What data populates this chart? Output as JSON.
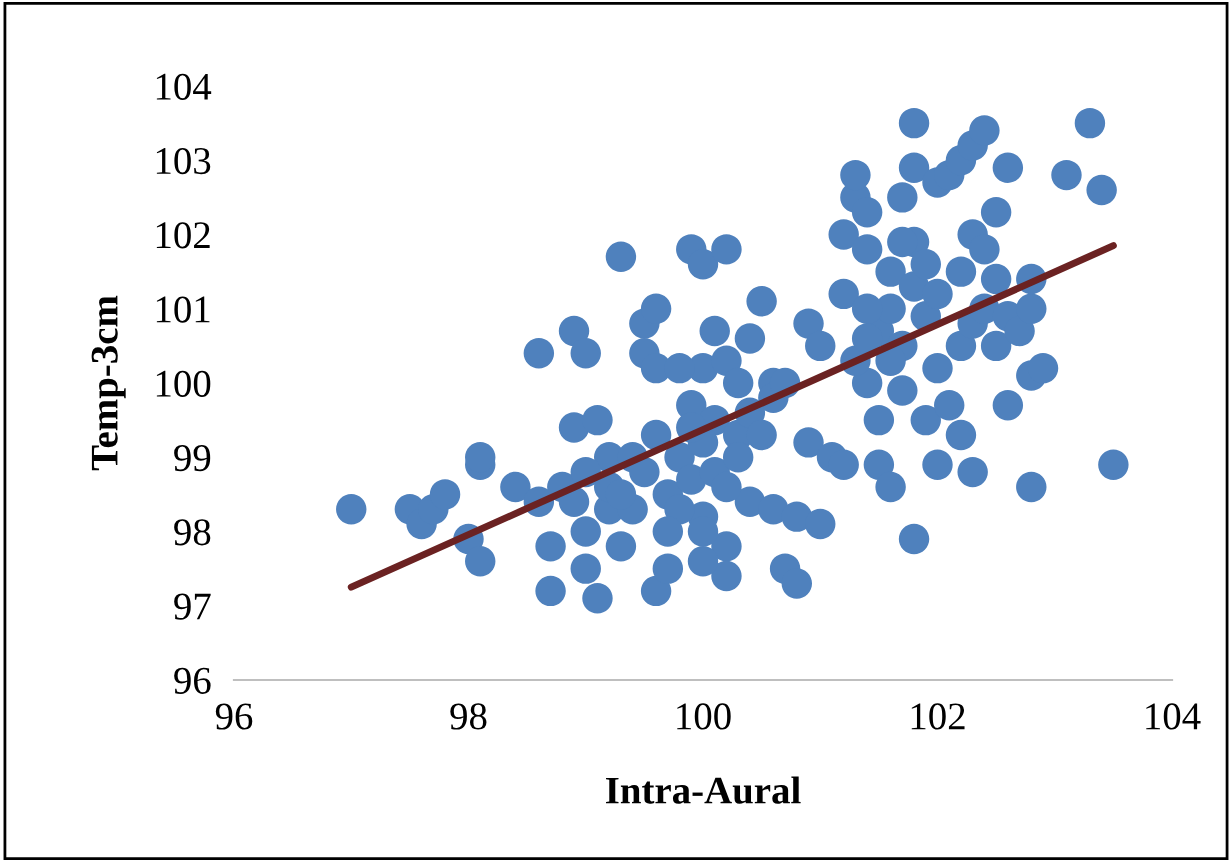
{
  "chart_data": {
    "type": "scatter",
    "xlabel": "Intra-Aural",
    "ylabel": "Temp-3cm",
    "xlim": [
      96,
      104
    ],
    "ylim": [
      96,
      104
    ],
    "xticks": [
      96,
      98,
      100,
      102,
      104
    ],
    "yticks": [
      96,
      97,
      98,
      99,
      100,
      101,
      102,
      103,
      104
    ],
    "marker": "circle",
    "series": [
      {
        "color": "#4f81bd",
        "x": [
          97.0,
          97.5,
          97.6,
          97.7,
          97.8,
          98.0,
          98.1,
          98.1,
          98.1,
          98.4,
          98.6,
          98.6,
          98.7,
          98.7,
          98.8,
          98.9,
          98.9,
          99.0,
          99.0,
          99.0,
          99.1,
          99.1,
          99.2,
          99.2,
          99.3,
          99.3,
          99.4,
          99.5,
          99.5,
          99.6,
          99.6,
          99.6,
          99.7,
          99.7,
          99.8,
          99.9,
          99.9,
          100.0,
          100.0,
          100.0,
          100.1,
          100.1,
          100.2,
          100.2,
          100.2,
          100.2,
          100.3,
          100.4,
          100.4,
          100.5,
          100.6,
          100.6,
          100.7,
          100.8,
          100.8,
          100.9,
          100.9,
          101.0,
          101.0,
          101.1,
          101.2,
          101.2,
          101.3,
          101.3,
          101.4,
          101.4,
          101.4,
          101.5,
          101.5,
          101.5,
          101.6,
          101.6,
          101.6,
          101.7,
          101.7,
          101.7,
          101.8,
          101.8,
          101.8,
          101.8,
          101.8,
          101.9,
          101.9,
          102.0,
          102.0,
          102.0,
          102.1,
          102.1,
          102.2,
          102.2,
          102.2,
          102.2,
          102.3,
          102.3,
          102.3,
          102.3,
          102.4,
          102.4,
          102.5,
          102.5,
          102.5,
          102.6,
          102.6,
          102.6,
          102.7,
          102.8,
          102.8,
          102.8,
          102.8,
          102.9,
          103.1,
          103.3,
          103.4,
          103.5,
          99.0,
          99.2,
          99.4,
          99.5,
          99.6,
          99.8,
          99.9,
          100.0,
          100.1,
          100.2,
          100.3,
          100.4,
          100.5,
          100.6,
          100.0,
          99.7,
          99.3,
          98.9,
          99.8,
          100.3,
          99.9,
          100.7,
          101.3,
          101.2,
          101.6,
          101.9,
          101.4,
          102.0,
          102.4,
          101.7,
          101.4,
          100.0
        ],
        "values": [
          98.3,
          98.3,
          98.1,
          98.3,
          98.5,
          97.9,
          97.6,
          98.9,
          99.0,
          98.6,
          98.4,
          100.4,
          97.8,
          97.2,
          98.6,
          99.4,
          100.7,
          100.4,
          98.0,
          97.5,
          97.1,
          99.5,
          98.3,
          99.0,
          101.7,
          97.8,
          99.0,
          100.8,
          100.4,
          101.0,
          100.2,
          97.2,
          97.5,
          98.5,
          99.0,
          101.8,
          99.7,
          101.6,
          98.2,
          100.2,
          99.5,
          100.7,
          101.8,
          100.3,
          97.8,
          97.4,
          99.3,
          100.6,
          98.4,
          101.1,
          100.0,
          98.3,
          97.5,
          97.3,
          98.2,
          100.8,
          99.2,
          100.5,
          98.1,
          99.0,
          102.0,
          98.9,
          102.5,
          102.8,
          102.3,
          101.8,
          100.0,
          100.7,
          99.5,
          98.9,
          101.0,
          101.5,
          98.6,
          102.5,
          100.5,
          99.9,
          102.9,
          101.9,
          101.3,
          97.9,
          103.5,
          100.9,
          99.5,
          102.7,
          101.2,
          98.9,
          102.8,
          99.7,
          103.0,
          101.5,
          100.5,
          99.3,
          103.2,
          102.0,
          100.8,
          98.8,
          103.4,
          101.0,
          102.3,
          101.4,
          100.5,
          102.9,
          100.9,
          99.7,
          100.7,
          101.0,
          100.1,
          98.6,
          101.4,
          100.2,
          102.8,
          103.5,
          102.6,
          98.9,
          98.8,
          98.6,
          98.3,
          98.8,
          99.3,
          98.3,
          98.7,
          99.2,
          98.8,
          98.6,
          99.0,
          99.6,
          99.3,
          99.8,
          98.0,
          98.0,
          98.5,
          98.4,
          100.2,
          100.0,
          99.4,
          100.0,
          100.3,
          101.2,
          100.3,
          101.6,
          101.0,
          100.2,
          101.8,
          101.9,
          100.6,
          97.6
        ]
      },
      {
        "type": "line",
        "color": "#6b2222",
        "marker": "none",
        "x": [
          97.0,
          103.5
        ],
        "values": [
          97.25,
          101.85
        ]
      }
    ]
  }
}
